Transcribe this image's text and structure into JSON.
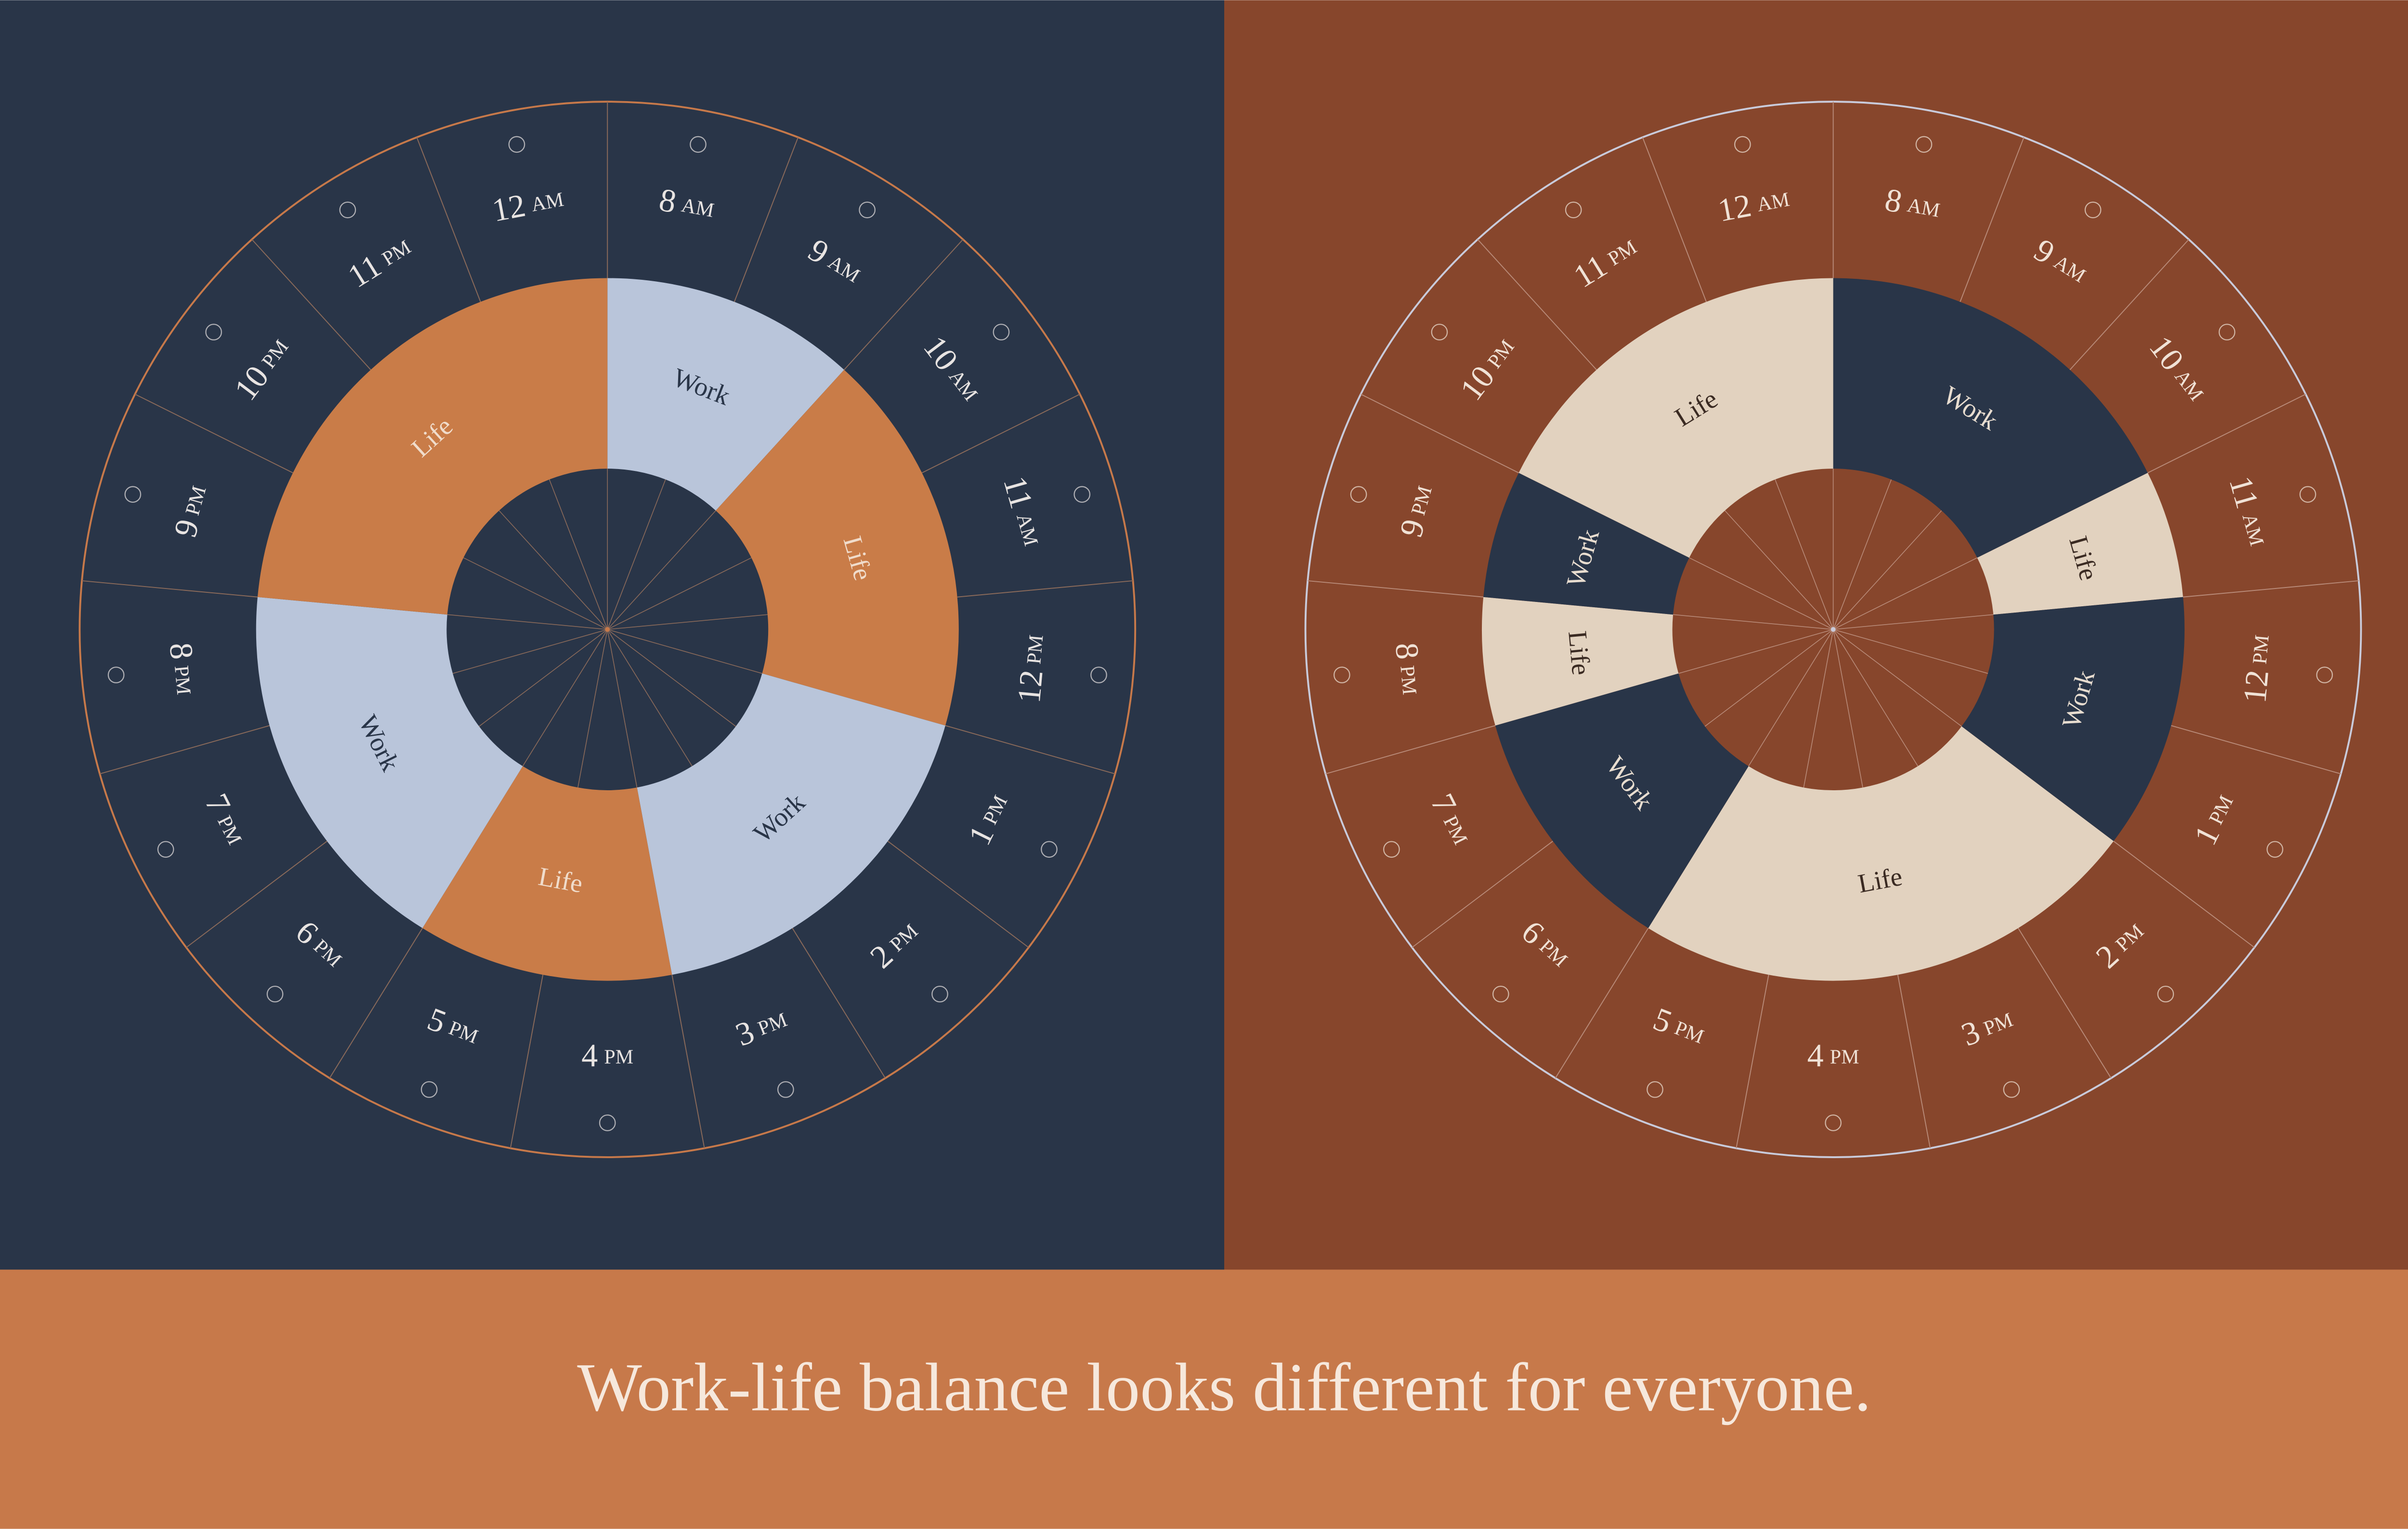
{
  "caption": "Work-life balance looks different for everyone.",
  "hours": [
    {
      "num": "8",
      "period": "AM"
    },
    {
      "num": "9",
      "period": "AM"
    },
    {
      "num": "10",
      "period": "AM"
    },
    {
      "num": "11",
      "period": "AM"
    },
    {
      "num": "12",
      "period": "PM"
    },
    {
      "num": "1",
      "period": "PM"
    },
    {
      "num": "2",
      "period": "PM"
    },
    {
      "num": "3",
      "period": "PM"
    },
    {
      "num": "4",
      "period": "PM"
    },
    {
      "num": "5",
      "period": "PM"
    },
    {
      "num": "6",
      "period": "PM"
    },
    {
      "num": "7",
      "period": "PM"
    },
    {
      "num": "8",
      "period": "PM"
    },
    {
      "num": "9",
      "period": "PM"
    },
    {
      "num": "10",
      "period": "PM"
    },
    {
      "num": "11",
      "period": "PM"
    },
    {
      "num": "12",
      "period": "AM"
    }
  ],
  "wheels": [
    {
      "segments": [
        {
          "label": "Work",
          "span": 2
        },
        {
          "label": "Life",
          "span": 3
        },
        {
          "label": "Work",
          "span": 3
        },
        {
          "label": "Life",
          "span": 2
        },
        {
          "label": "Work",
          "span": 3
        },
        {
          "label": "Life",
          "span": 4
        }
      ]
    },
    {
      "segments": [
        {
          "label": "Work",
          "span": 3
        },
        {
          "label": "Life",
          "span": 1
        },
        {
          "label": "Work",
          "span": 2
        },
        {
          "label": "Life",
          "span": 4
        },
        {
          "label": "Work",
          "span": 2
        },
        {
          "label": "Life",
          "span": 1
        },
        {
          "label": "Work",
          "span": 1
        },
        {
          "label": "Life",
          "span": 3
        }
      ]
    }
  ]
}
